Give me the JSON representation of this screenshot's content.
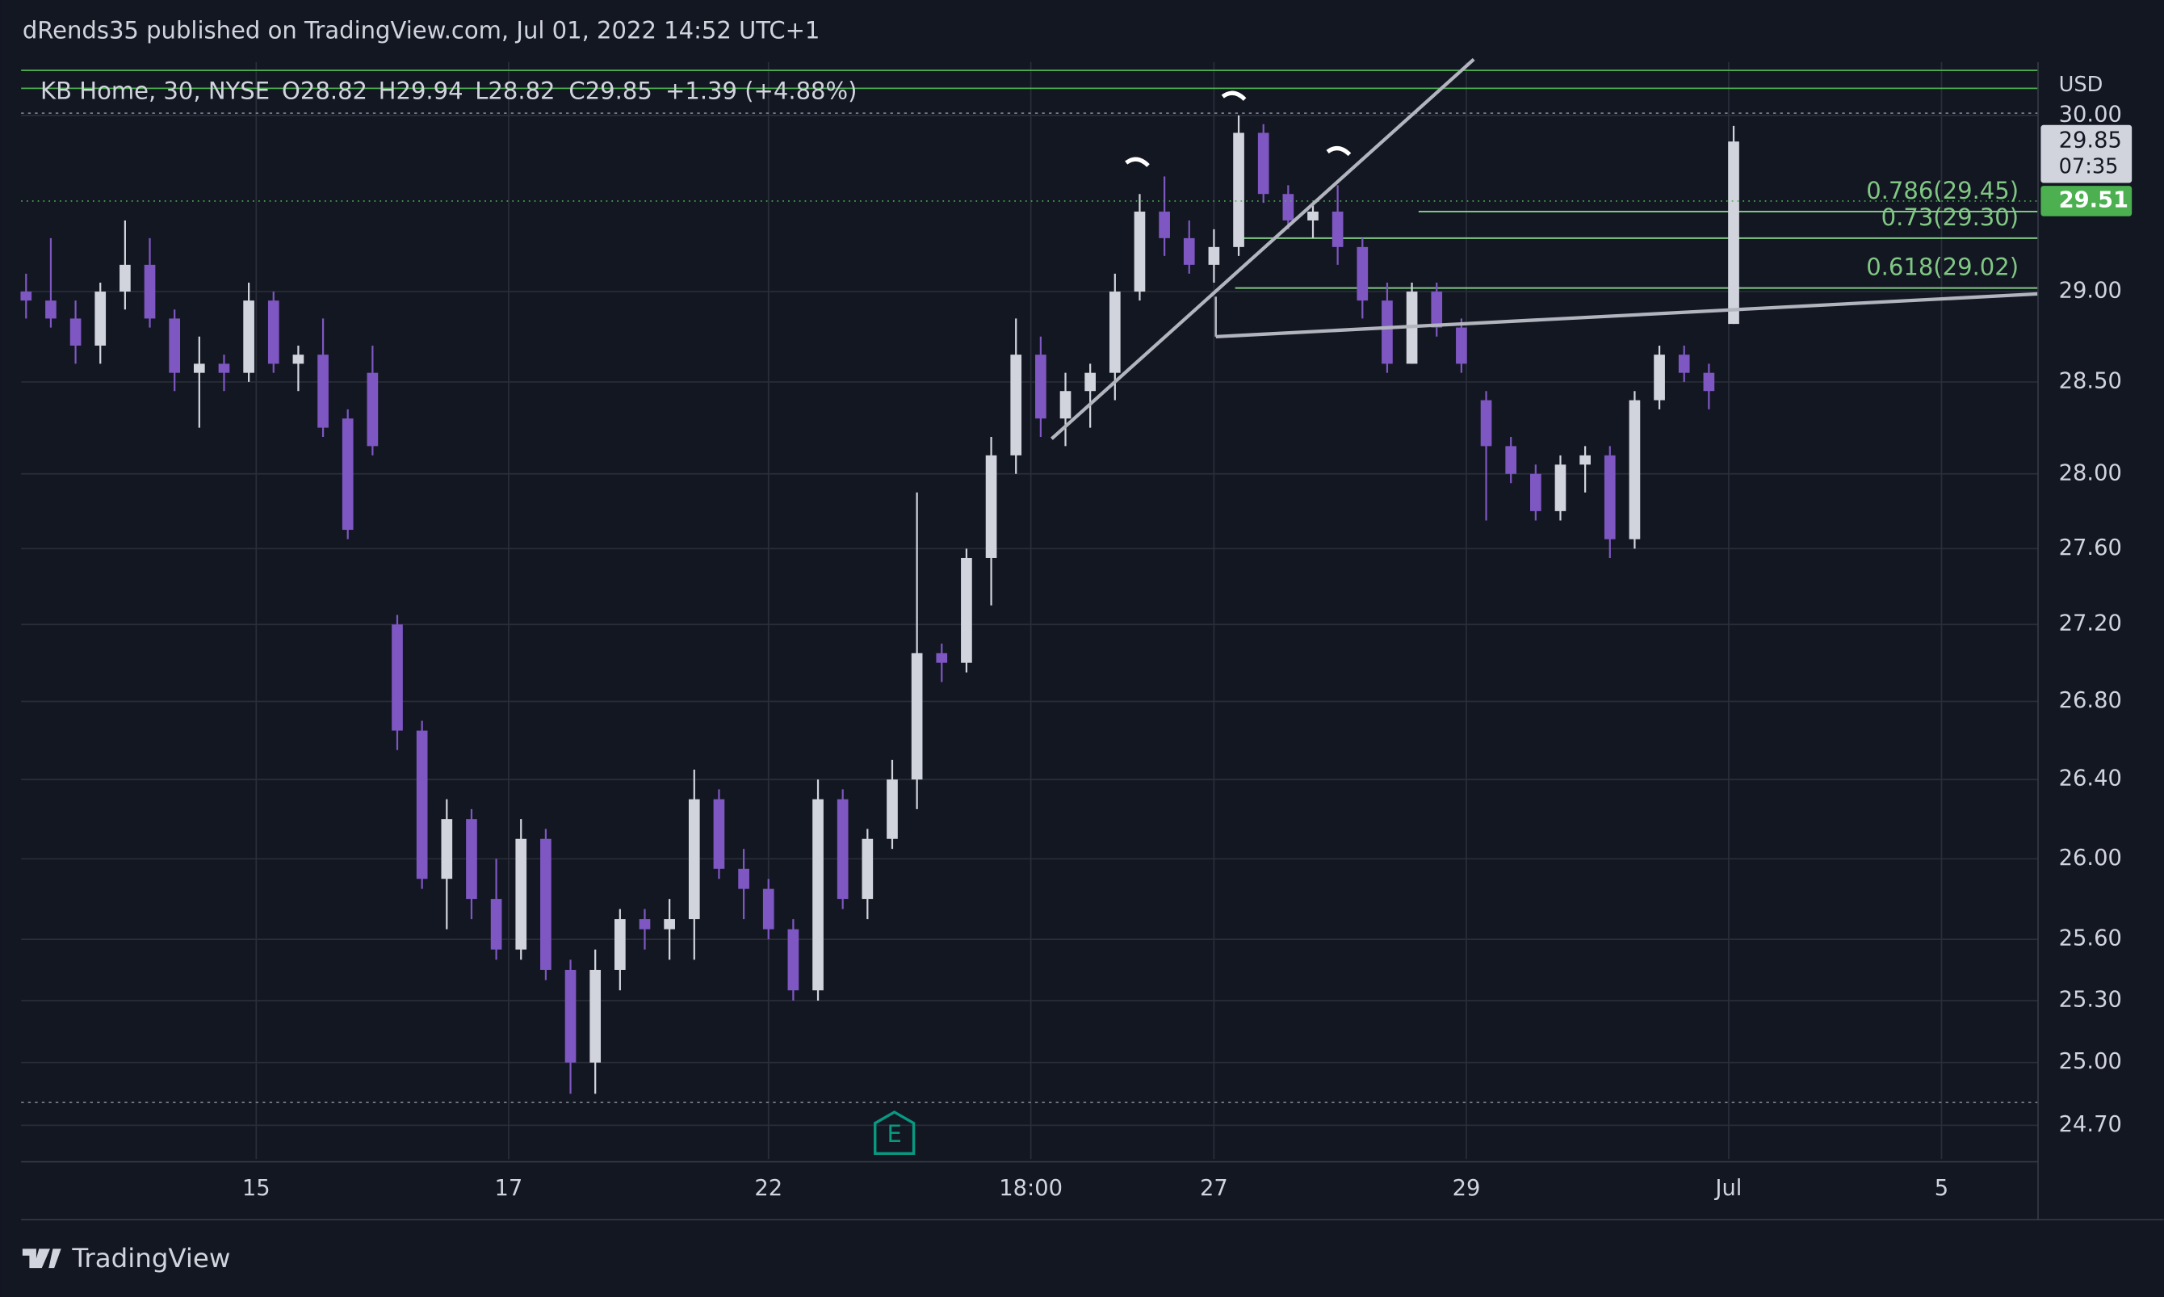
{
  "header": {
    "published": "dRends35 published on TradingView.com, Jul 01, 2022 14:52 UTC+1",
    "brand": "TradingView"
  },
  "chart_data": {
    "type": "candlestick",
    "legend": {
      "symbol": "KB Home, 30, NYSE",
      "open": "O28.82",
      "high": "H29.94",
      "low": "L28.82",
      "close": "C29.85",
      "change": "+1.39 (+4.88%)"
    },
    "currency": "USD",
    "log_scale": true,
    "grid": true,
    "up_color": "#d1d4dc",
    "down_color": "#7e57c2",
    "ylim": [
      24.54,
      30.31
    ],
    "yticks": [
      {
        "value": 30,
        "label": "30.00"
      },
      {
        "value": 29,
        "label": "29.00"
      },
      {
        "value": 28.5,
        "label": "28.50"
      },
      {
        "value": 28,
        "label": "28.00"
      },
      {
        "value": 27.6,
        "label": "27.60"
      },
      {
        "value": 27.2,
        "label": "27.20"
      },
      {
        "value": 26.8,
        "label": "26.80"
      },
      {
        "value": 26.4,
        "label": "26.40"
      },
      {
        "value": 26,
        "label": "26.00"
      },
      {
        "value": 25.6,
        "label": "25.60"
      },
      {
        "value": 25.3,
        "label": "25.30"
      },
      {
        "value": 25,
        "label": "25.00"
      },
      {
        "value": 24.7,
        "label": "24.70"
      }
    ],
    "xlim": [
      -0.2,
      81.3
    ],
    "xticks": [
      {
        "value": 9.3,
        "label": "15"
      },
      {
        "value": 19.5,
        "label": "17"
      },
      {
        "value": 30,
        "label": "22"
      },
      {
        "value": 40.6,
        "label": "18:00"
      },
      {
        "value": 48,
        "label": "27"
      },
      {
        "value": 58.2,
        "label": "29"
      },
      {
        "value": 68.8,
        "label": "Jul"
      },
      {
        "value": 77.4,
        "label": "5"
      }
    ],
    "ohlc": [
      [
        29.0,
        29.1,
        28.85,
        28.95
      ],
      [
        28.95,
        29.3,
        28.8,
        28.85
      ],
      [
        28.85,
        28.95,
        28.6,
        28.7
      ],
      [
        28.7,
        29.05,
        28.6,
        29.0
      ],
      [
        29.0,
        29.4,
        28.9,
        29.15
      ],
      [
        29.15,
        29.3,
        28.8,
        28.85
      ],
      [
        28.85,
        28.9,
        28.45,
        28.55
      ],
      [
        28.55,
        28.75,
        28.25,
        28.6
      ],
      [
        28.6,
        28.65,
        28.45,
        28.55
      ],
      [
        28.55,
        29.05,
        28.5,
        28.95
      ],
      [
        28.95,
        29.0,
        28.55,
        28.6
      ],
      [
        28.6,
        28.7,
        28.45,
        28.65
      ],
      [
        28.65,
        28.85,
        28.2,
        28.25
      ],
      [
        28.3,
        28.35,
        27.65,
        27.7
      ],
      [
        28.55,
        28.7,
        28.1,
        28.15
      ],
      [
        27.2,
        27.25,
        26.55,
        26.65
      ],
      [
        26.65,
        26.7,
        25.85,
        25.9
      ],
      [
        25.9,
        26.3,
        25.65,
        26.2
      ],
      [
        26.2,
        26.25,
        25.7,
        25.8
      ],
      [
        25.8,
        26.0,
        25.5,
        25.55
      ],
      [
        25.55,
        26.2,
        25.5,
        26.1
      ],
      [
        26.1,
        26.15,
        25.4,
        25.45
      ],
      [
        25.45,
        25.5,
        24.85,
        25.0
      ],
      [
        25.0,
        25.55,
        24.85,
        25.45
      ],
      [
        25.45,
        25.75,
        25.35,
        25.7
      ],
      [
        25.7,
        25.75,
        25.55,
        25.65
      ],
      [
        25.65,
        25.8,
        25.5,
        25.7
      ],
      [
        25.7,
        26.45,
        25.5,
        26.3
      ],
      [
        26.3,
        26.35,
        25.9,
        25.95
      ],
      [
        25.95,
        26.05,
        25.7,
        25.85
      ],
      [
        25.85,
        25.9,
        25.6,
        25.65
      ],
      [
        25.65,
        25.7,
        25.3,
        25.35
      ],
      [
        25.35,
        26.4,
        25.3,
        26.3
      ],
      [
        26.3,
        26.35,
        25.75,
        25.8
      ],
      [
        25.8,
        26.15,
        25.7,
        26.1
      ],
      [
        26.1,
        26.5,
        26.05,
        26.4
      ],
      [
        26.4,
        27.9,
        26.25,
        27.05
      ],
      [
        27.05,
        27.1,
        26.9,
        27.0
      ],
      [
        27.0,
        27.6,
        26.95,
        27.55
      ],
      [
        27.55,
        28.2,
        27.3,
        28.1
      ],
      [
        28.1,
        28.85,
        28.0,
        28.65
      ],
      [
        28.65,
        28.75,
        28.2,
        28.3
      ],
      [
        28.3,
        28.55,
        28.15,
        28.45
      ],
      [
        28.45,
        28.6,
        28.25,
        28.55
      ],
      [
        28.55,
        29.1,
        28.4,
        29.0
      ],
      [
        29.0,
        29.55,
        28.95,
        29.45
      ],
      [
        29.45,
        29.65,
        29.2,
        29.3
      ],
      [
        29.3,
        29.4,
        29.1,
        29.15
      ],
      [
        29.15,
        29.35,
        29.05,
        29.25
      ],
      [
        29.25,
        30.0,
        29.2,
        29.9
      ],
      [
        29.9,
        29.95,
        29.5,
        29.55
      ],
      [
        29.55,
        29.6,
        29.35,
        29.4
      ],
      [
        29.4,
        29.5,
        29.3,
        29.45
      ],
      [
        29.45,
        29.6,
        29.15,
        29.25
      ],
      [
        29.25,
        29.3,
        28.85,
        28.95
      ],
      [
        28.95,
        29.05,
        28.55,
        28.6
      ],
      [
        28.6,
        29.05,
        28.6,
        29.0
      ],
      [
        29.0,
        29.05,
        28.75,
        28.8
      ],
      [
        28.8,
        28.85,
        28.55,
        28.6
      ],
      [
        28.4,
        28.45,
        27.75,
        28.15
      ],
      [
        28.15,
        28.2,
        27.95,
        28.0
      ],
      [
        28.0,
        28.05,
        27.75,
        27.8
      ],
      [
        27.8,
        28.1,
        27.75,
        28.05
      ],
      [
        28.05,
        28.15,
        27.9,
        28.1
      ],
      [
        28.1,
        28.15,
        27.55,
        27.65
      ],
      [
        27.65,
        28.45,
        27.6,
        28.4
      ],
      [
        28.4,
        28.7,
        28.35,
        28.65
      ],
      [
        28.65,
        28.7,
        28.5,
        28.55
      ],
      [
        28.55,
        28.6,
        28.35,
        28.45
      ],
      [
        28.82,
        29.94,
        28.82,
        29.85
      ]
    ],
    "last_price": {
      "value": 29.85,
      "label": "29.85",
      "countdown": "07:35"
    },
    "price_line": {
      "value": 29.51,
      "label": "29.51",
      "color": "#4caf50"
    },
    "fib_color": "#81c784",
    "fib_levels": [
      {
        "value": 29.45,
        "label": "0.786(29.45)"
      },
      {
        "value": 29.3,
        "label": "0.73(29.30)"
      },
      {
        "value": 29.02,
        "label": "0.618(29.02)"
      }
    ],
    "event_marker": "E"
  }
}
